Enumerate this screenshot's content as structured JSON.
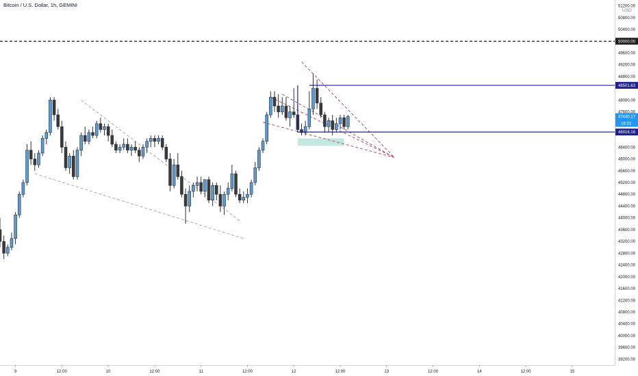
{
  "header": {
    "title": "Bitcoin / U.S. Dollar, 1h, GEMINI",
    "currency": "USD"
  },
  "colors": {
    "up": "#5b9bd5",
    "down": "#3a3a3a",
    "outline": "#2a2e39",
    "level_line": "#1f1f8f",
    "wedge": "#b05070",
    "trend": "#aaaaaa",
    "demand_zone": "#b9e4dc",
    "price_badge": "#2196f3",
    "dark_badge": "#1f1f1f",
    "level_badge": "#1f1f8f"
  },
  "chart_data": {
    "type": "candlestick",
    "symbol": "Bitcoin / U.S. Dollar",
    "interval": "1h",
    "exchange": "GEMINI",
    "ylim": [
      39000,
      51400
    ],
    "y_ticks": [
      {
        "value": 51200,
        "label": "51200.00"
      },
      {
        "value": 50800,
        "label": "50800.00"
      },
      {
        "value": 50400,
        "label": "50400.00"
      },
      {
        "value": 49600,
        "label": "49600.00"
      },
      {
        "value": 49200,
        "label": "49200.00"
      },
      {
        "value": 48800,
        "label": "48800.00"
      },
      {
        "value": 48000,
        "label": "48000.00"
      },
      {
        "value": 47600,
        "label": "47600.00"
      },
      {
        "value": 46400,
        "label": "46400.00"
      },
      {
        "value": 46000,
        "label": "46000.00"
      },
      {
        "value": 45600,
        "label": "45600.00"
      },
      {
        "value": 45200,
        "label": "45200.00"
      },
      {
        "value": 44800,
        "label": "44800.00"
      },
      {
        "value": 44400,
        "label": "44400.00"
      },
      {
        "value": 44000,
        "label": "44000.00"
      },
      {
        "value": 43600,
        "label": "43600.00"
      },
      {
        "value": 43200,
        "label": "43200.00"
      },
      {
        "value": 42800,
        "label": "42800.00"
      },
      {
        "value": 42400,
        "label": "42400.00"
      },
      {
        "value": 42000,
        "label": "42000.00"
      },
      {
        "value": 41600,
        "label": "41600.00"
      },
      {
        "value": 41200,
        "label": "41200.00"
      },
      {
        "value": 40800,
        "label": "40800.00"
      },
      {
        "value": 40400,
        "label": "40400.00"
      },
      {
        "value": 40000,
        "label": "40000.00"
      },
      {
        "value": 39600,
        "label": "39600.00"
      },
      {
        "value": 39200,
        "label": "39200.00"
      }
    ],
    "x_ticks": [
      {
        "hour": 0,
        "label": "9"
      },
      {
        "hour": 12,
        "label": "12:00"
      },
      {
        "hour": 24,
        "label": "10"
      },
      {
        "hour": 36,
        "label": "12:00"
      },
      {
        "hour": 48,
        "label": "11"
      },
      {
        "hour": 60,
        "label": "12:00"
      },
      {
        "hour": 72,
        "label": "12"
      },
      {
        "hour": 84,
        "label": "12:00"
      },
      {
        "hour": 96,
        "label": "13"
      },
      {
        "hour": 108,
        "label": "12:00"
      },
      {
        "hour": 120,
        "label": "14"
      },
      {
        "hour": 132,
        "label": "12:00"
      },
      {
        "hour": 144,
        "label": "15"
      }
    ],
    "xlim_hours": [
      -4,
      155
    ],
    "ohlc": [
      {
        "t": -4,
        "o": 43600,
        "h": 44000,
        "l": 43000,
        "c": 43200
      },
      {
        "t": -3,
        "o": 43200,
        "h": 43400,
        "l": 42600,
        "c": 42800
      },
      {
        "t": -2,
        "o": 42800,
        "h": 43100,
        "l": 42700,
        "c": 43000
      },
      {
        "t": -1,
        "o": 43000,
        "h": 43500,
        "l": 42900,
        "c": 43300
      },
      {
        "t": 0,
        "o": 43300,
        "h": 44200,
        "l": 43100,
        "c": 44100
      },
      {
        "t": 1,
        "o": 44100,
        "h": 44900,
        "l": 44000,
        "c": 44800
      },
      {
        "t": 2,
        "o": 44800,
        "h": 45300,
        "l": 44700,
        "c": 45200
      },
      {
        "t": 3,
        "o": 45200,
        "h": 46500,
        "l": 45100,
        "c": 46300
      },
      {
        "t": 4,
        "o": 46300,
        "h": 46600,
        "l": 45800,
        "c": 46000
      },
      {
        "t": 5,
        "o": 46000,
        "h": 46200,
        "l": 45600,
        "c": 45800
      },
      {
        "t": 6,
        "o": 45800,
        "h": 46300,
        "l": 45700,
        "c": 46200
      },
      {
        "t": 7,
        "o": 46200,
        "h": 46800,
        "l": 46100,
        "c": 46700
      },
      {
        "t": 8,
        "o": 46700,
        "h": 47000,
        "l": 46500,
        "c": 46900
      },
      {
        "t": 9,
        "o": 46900,
        "h": 48100,
        "l": 46800,
        "c": 48000
      },
      {
        "t": 10,
        "o": 48000,
        "h": 48100,
        "l": 47300,
        "c": 47500
      },
      {
        "t": 11,
        "o": 47500,
        "h": 47700,
        "l": 47000,
        "c": 47100
      },
      {
        "t": 12,
        "o": 47100,
        "h": 47300,
        "l": 46200,
        "c": 46400
      },
      {
        "t": 13,
        "o": 46400,
        "h": 46600,
        "l": 45600,
        "c": 45700
      },
      {
        "t": 14,
        "o": 45700,
        "h": 46200,
        "l": 45500,
        "c": 46100
      },
      {
        "t": 15,
        "o": 46100,
        "h": 46300,
        "l": 45300,
        "c": 45400
      },
      {
        "t": 16,
        "o": 45400,
        "h": 46400,
        "l": 45300,
        "c": 46300
      },
      {
        "t": 17,
        "o": 46300,
        "h": 46900,
        "l": 46100,
        "c": 46800
      },
      {
        "t": 18,
        "o": 46800,
        "h": 47100,
        "l": 46500,
        "c": 46600
      },
      {
        "t": 19,
        "o": 46600,
        "h": 47000,
        "l": 46500,
        "c": 46900
      },
      {
        "t": 20,
        "o": 46900,
        "h": 47100,
        "l": 46700,
        "c": 46800
      },
      {
        "t": 21,
        "o": 46800,
        "h": 47300,
        "l": 46700,
        "c": 47200
      },
      {
        "t": 22,
        "o": 47200,
        "h": 47400,
        "l": 46900,
        "c": 47000
      },
      {
        "t": 23,
        "o": 47000,
        "h": 47200,
        "l": 46800,
        "c": 47100
      },
      {
        "t": 24,
        "o": 47100,
        "h": 47200,
        "l": 46600,
        "c": 46800
      },
      {
        "t": 25,
        "o": 46800,
        "h": 47000,
        "l": 46400,
        "c": 46500
      },
      {
        "t": 26,
        "o": 46500,
        "h": 46600,
        "l": 46200,
        "c": 46300
      },
      {
        "t": 27,
        "o": 46300,
        "h": 46500,
        "l": 46200,
        "c": 46400
      },
      {
        "t": 28,
        "o": 46400,
        "h": 46700,
        "l": 46300,
        "c": 46500
      },
      {
        "t": 29,
        "o": 46500,
        "h": 46700,
        "l": 46200,
        "c": 46300
      },
      {
        "t": 30,
        "o": 46300,
        "h": 46500,
        "l": 46100,
        "c": 46400
      },
      {
        "t": 31,
        "o": 46400,
        "h": 46600,
        "l": 46200,
        "c": 46300
      },
      {
        "t": 32,
        "o": 46300,
        "h": 46400,
        "l": 45900,
        "c": 46100
      },
      {
        "t": 33,
        "o": 46100,
        "h": 46500,
        "l": 46000,
        "c": 46400
      },
      {
        "t": 34,
        "o": 46400,
        "h": 46700,
        "l": 46200,
        "c": 46600
      },
      {
        "t": 35,
        "o": 46600,
        "h": 46800,
        "l": 46400,
        "c": 46700
      },
      {
        "t": 36,
        "o": 46700,
        "h": 46800,
        "l": 46400,
        "c": 46600
      },
      {
        "t": 37,
        "o": 46600,
        "h": 46800,
        "l": 46500,
        "c": 46700
      },
      {
        "t": 38,
        "o": 46700,
        "h": 46800,
        "l": 46300,
        "c": 46400
      },
      {
        "t": 39,
        "o": 46400,
        "h": 46500,
        "l": 45900,
        "c": 46000
      },
      {
        "t": 40,
        "o": 46000,
        "h": 46200,
        "l": 44900,
        "c": 45100
      },
      {
        "t": 41,
        "o": 45100,
        "h": 46000,
        "l": 45000,
        "c": 45800
      },
      {
        "t": 42,
        "o": 45800,
        "h": 46200,
        "l": 45300,
        "c": 45400
      },
      {
        "t": 43,
        "o": 45400,
        "h": 45600,
        "l": 44700,
        "c": 44800
      },
      {
        "t": 44,
        "o": 44800,
        "h": 45000,
        "l": 43800,
        "c": 44400
      },
      {
        "t": 45,
        "o": 44400,
        "h": 45100,
        "l": 44200,
        "c": 44900
      },
      {
        "t": 46,
        "o": 44900,
        "h": 45200,
        "l": 44700,
        "c": 45100
      },
      {
        "t": 47,
        "o": 45100,
        "h": 45400,
        "l": 44900,
        "c": 45200
      },
      {
        "t": 48,
        "o": 45200,
        "h": 45400,
        "l": 44800,
        "c": 44900
      },
      {
        "t": 49,
        "o": 44900,
        "h": 45300,
        "l": 44700,
        "c": 45300
      },
      {
        "t": 50,
        "o": 45300,
        "h": 45400,
        "l": 44500,
        "c": 44600
      },
      {
        "t": 51,
        "o": 44600,
        "h": 45200,
        "l": 44400,
        "c": 45100
      },
      {
        "t": 52,
        "o": 45100,
        "h": 45200,
        "l": 44600,
        "c": 44800
      },
      {
        "t": 53,
        "o": 44800,
        "h": 45100,
        "l": 44200,
        "c": 44400
      },
      {
        "t": 54,
        "o": 44400,
        "h": 44900,
        "l": 44100,
        "c": 44800
      },
      {
        "t": 55,
        "o": 44800,
        "h": 45200,
        "l": 44600,
        "c": 45000
      },
      {
        "t": 56,
        "o": 45000,
        "h": 45800,
        "l": 44900,
        "c": 45500
      },
      {
        "t": 57,
        "o": 45500,
        "h": 45600,
        "l": 44700,
        "c": 44800
      },
      {
        "t": 58,
        "o": 44800,
        "h": 45000,
        "l": 44500,
        "c": 44600
      },
      {
        "t": 59,
        "o": 44600,
        "h": 44900,
        "l": 44500,
        "c": 44700
      },
      {
        "t": 60,
        "o": 44700,
        "h": 45000,
        "l": 44500,
        "c": 44800
      },
      {
        "t": 61,
        "o": 44800,
        "h": 45300,
        "l": 44700,
        "c": 45200
      },
      {
        "t": 62,
        "o": 45200,
        "h": 45900,
        "l": 45100,
        "c": 45700
      },
      {
        "t": 63,
        "o": 45700,
        "h": 46400,
        "l": 45600,
        "c": 46300
      },
      {
        "t": 64,
        "o": 46300,
        "h": 46700,
        "l": 46200,
        "c": 46600
      },
      {
        "t": 65,
        "o": 46600,
        "h": 47600,
        "l": 46500,
        "c": 47500
      },
      {
        "t": 66,
        "o": 47500,
        "h": 48300,
        "l": 47400,
        "c": 48100
      },
      {
        "t": 67,
        "o": 48100,
        "h": 48300,
        "l": 47600,
        "c": 47800
      },
      {
        "t": 68,
        "o": 47800,
        "h": 48200,
        "l": 47400,
        "c": 47600
      },
      {
        "t": 69,
        "o": 47600,
        "h": 48100,
        "l": 47500,
        "c": 47800
      },
      {
        "t": 70,
        "o": 47800,
        "h": 48100,
        "l": 47300,
        "c": 47400
      },
      {
        "t": 71,
        "o": 47400,
        "h": 47800,
        "l": 47100,
        "c": 47600
      },
      {
        "t": 72,
        "o": 47600,
        "h": 48400,
        "l": 47400,
        "c": 47500
      },
      {
        "t": 73,
        "o": 47500,
        "h": 47800,
        "l": 46900,
        "c": 47000
      },
      {
        "t": 74,
        "o": 47000,
        "h": 47200,
        "l": 46800,
        "c": 46900
      },
      {
        "t": 75,
        "o": 46900,
        "h": 47300,
        "l": 46800,
        "c": 47100
      },
      {
        "t": 76,
        "o": 47100,
        "h": 48300,
        "l": 47000,
        "c": 47700
      },
      {
        "t": 77,
        "o": 47700,
        "h": 48900,
        "l": 47500,
        "c": 48400
      },
      {
        "t": 78,
        "o": 48400,
        "h": 48700,
        "l": 47700,
        "c": 47900
      },
      {
        "t": 79,
        "o": 47900,
        "h": 48100,
        "l": 47400,
        "c": 47500
      },
      {
        "t": 80,
        "o": 47500,
        "h": 47600,
        "l": 46900,
        "c": 47100
      },
      {
        "t": 81,
        "o": 47100,
        "h": 47400,
        "l": 46900,
        "c": 47300
      },
      {
        "t": 82,
        "o": 47300,
        "h": 47500,
        "l": 46800,
        "c": 47000
      },
      {
        "t": 83,
        "o": 47000,
        "h": 47400,
        "l": 46900,
        "c": 47200
      },
      {
        "t": 84,
        "o": 47200,
        "h": 47500,
        "l": 47000,
        "c": 47400
      },
      {
        "t": 85,
        "o": 47400,
        "h": 47500,
        "l": 47000,
        "c": 47100
      },
      {
        "t": 86,
        "o": 47100,
        "h": 47500,
        "l": 47000,
        "c": 47440
      }
    ],
    "horizontal_levels": [
      {
        "price": 50000,
        "label": "50000.00",
        "style": "dashed-black"
      },
      {
        "price": 48501.63,
        "label": "48501.63",
        "style": "solid-navy",
        "from_hour": 76
      },
      {
        "price": 46916.16,
        "label": "46916.16",
        "style": "solid-navy",
        "from_hour": 73
      }
    ],
    "current_price": {
      "value": 47440.17,
      "label": "47440.17",
      "countdown": "16:33"
    },
    "demand_zone": {
      "from_hour": 73,
      "to_hour": 85,
      "low": 46450,
      "high": 46700
    },
    "trendlines": [
      {
        "kind": "grey",
        "p1": {
          "t": 17,
          "v": 48000
        },
        "p2": {
          "t": 58,
          "v": 43900
        }
      },
      {
        "kind": "grey",
        "p1": {
          "t": 5,
          "v": 45500
        },
        "p2": {
          "t": 59,
          "v": 43300
        }
      },
      {
        "kind": "wedge",
        "p1": {
          "t": 66,
          "v": 48100
        },
        "p2": {
          "t": 98,
          "v": 46050
        }
      },
      {
        "kind": "wedge",
        "p1": {
          "t": 64,
          "v": 47250
        },
        "p2": {
          "t": 98,
          "v": 46050
        }
      },
      {
        "kind": "wedge",
        "p1": {
          "t": 74,
          "v": 49300
        },
        "p2": {
          "t": 98,
          "v": 46050
        }
      },
      {
        "kind": "wedge",
        "p1": {
          "t": 69,
          "v": 48200
        },
        "p2": {
          "t": 98,
          "v": 46050
        }
      }
    ]
  }
}
